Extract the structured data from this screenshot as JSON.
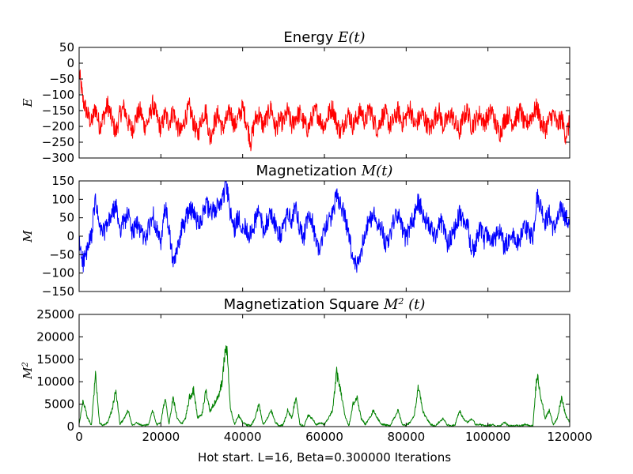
{
  "chart_data": [
    {
      "type": "line",
      "title_text": "Energy ",
      "title_math": "E(t)",
      "title_sup": "",
      "title_tail": "",
      "ylabel": "E",
      "ylabel_sup": "",
      "color": "#ff0000",
      "xlim": [
        0,
        120000
      ],
      "ylim": [
        -300,
        50
      ],
      "yticks": [
        50,
        0,
        -50,
        -100,
        -150,
        -200,
        -250,
        -300
      ],
      "ytick_labels": [
        "50",
        "0",
        "−50",
        "−100",
        "−150",
        "−200",
        "−250",
        "−300"
      ],
      "show_xticklabels": false,
      "series": [
        {
          "x": [
            0,
            1000,
            2000,
            3000,
            4000,
            5000,
            6000,
            7000,
            8000,
            9000,
            10000,
            11000,
            12000,
            13000,
            14000,
            15000,
            16000,
            17000,
            18000,
            19000,
            20000,
            21000,
            22000,
            23000,
            24000,
            25000,
            26000,
            27000,
            28000,
            29000,
            30000,
            31000,
            32000,
            33000,
            34000,
            35000,
            36000,
            37000,
            38000,
            39000,
            40000,
            41000,
            42000,
            43000,
            44000,
            45000,
            46000,
            47000,
            48000,
            49000,
            50000,
            51000,
            52000,
            53000,
            54000,
            55000,
            56000,
            57000,
            58000,
            59000,
            60000,
            61000,
            62000,
            63000,
            64000,
            65000,
            66000,
            67000,
            68000,
            69000,
            70000,
            71000,
            72000,
            73000,
            74000,
            75000,
            76000,
            77000,
            78000,
            79000,
            80000,
            81000,
            82000,
            83000,
            84000,
            85000,
            86000,
            87000,
            88000,
            89000,
            90000,
            91000,
            92000,
            93000,
            94000,
            95000,
            96000,
            97000,
            98000,
            99000,
            100000,
            101000,
            102000,
            103000,
            104000,
            105000,
            106000,
            107000,
            108000,
            109000,
            110000,
            111000,
            112000,
            113000,
            114000,
            115000,
            116000,
            117000,
            118000,
            119000,
            120000
          ],
          "y": [
            -30,
            -120,
            -160,
            -190,
            -140,
            -200,
            -170,
            -130,
            -180,
            -220,
            -160,
            -140,
            -190,
            -210,
            -170,
            -150,
            -200,
            -180,
            -130,
            -170,
            -210,
            -160,
            -190,
            -150,
            -200,
            -220,
            -170,
            -140,
            -190,
            -230,
            -170,
            -150,
            -240,
            -190,
            -160,
            -210,
            -180,
            -150,
            -200,
            -170,
            -140,
            -190,
            -250,
            -180,
            -160,
            -200,
            -170,
            -140,
            -210,
            -180,
            -190,
            -150,
            -200,
            -170,
            -160,
            -190,
            -210,
            -170,
            -150,
            -180,
            -200,
            -160,
            -140,
            -190,
            -220,
            -180,
            -160,
            -200,
            -170,
            -150,
            -190,
            -140,
            -180,
            -210,
            -170,
            -160,
            -200,
            -180,
            -150,
            -190,
            -170,
            -140,
            -200,
            -180,
            -160,
            -190,
            -210,
            -170,
            -150,
            -200,
            -180,
            -160,
            -190,
            -220,
            -170,
            -150,
            -200,
            -180,
            -160,
            -190,
            -170,
            -150,
            -200,
            -220,
            -180,
            -160,
            -190,
            -170,
            -150,
            -200,
            -180,
            -160,
            -140,
            -190,
            -210,
            -180,
            -160,
            -200,
            -170,
            -230,
            -190
          ]
        }
      ]
    },
    {
      "type": "line",
      "title_text": "Magnetization  ",
      "title_math": "M(t)",
      "title_sup": "",
      "title_tail": "",
      "ylabel": "M",
      "ylabel_sup": "",
      "color": "#0000ff",
      "xlim": [
        0,
        120000
      ],
      "ylim": [
        -150,
        150
      ],
      "yticks": [
        150,
        100,
        50,
        0,
        -50,
        -100,
        -150
      ],
      "ytick_labels": [
        "150",
        "100",
        "50",
        "0",
        "−50",
        "−100",
        "−150"
      ],
      "show_xticklabels": false,
      "series": [
        {
          "x": [
            0,
            1000,
            2000,
            3000,
            4000,
            5000,
            6000,
            7000,
            8000,
            9000,
            10000,
            11000,
            12000,
            13000,
            14000,
            15000,
            16000,
            17000,
            18000,
            19000,
            20000,
            21000,
            22000,
            23000,
            24000,
            25000,
            26000,
            27000,
            28000,
            29000,
            30000,
            31000,
            32000,
            33000,
            34000,
            35000,
            36000,
            37000,
            38000,
            39000,
            40000,
            41000,
            42000,
            43000,
            44000,
            45000,
            46000,
            47000,
            48000,
            49000,
            50000,
            51000,
            52000,
            53000,
            54000,
            55000,
            56000,
            57000,
            58000,
            59000,
            60000,
            61000,
            62000,
            63000,
            64000,
            65000,
            66000,
            67000,
            68000,
            69000,
            70000,
            71000,
            72000,
            73000,
            74000,
            75000,
            76000,
            77000,
            78000,
            79000,
            80000,
            81000,
            82000,
            83000,
            84000,
            85000,
            86000,
            87000,
            88000,
            89000,
            90000,
            91000,
            92000,
            93000,
            94000,
            95000,
            96000,
            97000,
            98000,
            99000,
            100000,
            101000,
            102000,
            103000,
            104000,
            105000,
            106000,
            107000,
            108000,
            109000,
            110000,
            111000,
            112000,
            113000,
            114000,
            115000,
            116000,
            117000,
            118000,
            119000,
            120000
          ],
          "y": [
            -20,
            -70,
            -40,
            0,
            100,
            20,
            10,
            30,
            60,
            80,
            20,
            40,
            60,
            10,
            30,
            20,
            -10,
            20,
            60,
            20,
            -30,
            80,
            20,
            -80,
            -40,
            20,
            40,
            80,
            60,
            40,
            50,
            90,
            60,
            70,
            80,
            100,
            140,
            60,
            20,
            50,
            30,
            20,
            0,
            40,
            70,
            20,
            40,
            60,
            30,
            0,
            20,
            60,
            40,
            80,
            20,
            0,
            50,
            40,
            -20,
            -30,
            20,
            40,
            60,
            110,
            90,
            50,
            0,
            -70,
            -80,
            -40,
            20,
            40,
            60,
            40,
            20,
            -20,
            0,
            40,
            60,
            20,
            -10,
            30,
            50,
            100,
            60,
            40,
            20,
            0,
            30,
            40,
            -20,
            0,
            20,
            60,
            40,
            30,
            -40,
            -20,
            20,
            -10,
            10,
            -20,
            0,
            10,
            -30,
            -10,
            0,
            -20,
            0,
            20,
            10,
            0,
            110,
            80,
            40,
            60,
            20,
            40,
            80,
            50,
            30
          ]
        }
      ]
    },
    {
      "type": "line",
      "title_text": "Magnetization Square  ",
      "title_math": "M",
      "title_sup": "2",
      "title_tail": " (t)",
      "ylabel": "M",
      "ylabel_sup": "2",
      "color": "#008000",
      "xlim": [
        0,
        120000
      ],
      "ylim": [
        0,
        25000
      ],
      "yticks": [
        25000,
        20000,
        15000,
        10000,
        5000,
        0
      ],
      "ytick_labels": [
        "25000",
        "20000",
        "15000",
        "10000",
        "5000",
        "0"
      ],
      "xticks": [
        0,
        20000,
        40000,
        60000,
        80000,
        100000,
        120000
      ],
      "xtick_labels": [
        "0",
        "20000",
        "40000",
        "60000",
        "80000",
        "100000",
        "120000"
      ],
      "show_xticklabels": true,
      "series": [
        {
          "x": [
            0,
            1000,
            2000,
            3000,
            4000,
            5000,
            6000,
            7000,
            8000,
            9000,
            10000,
            11000,
            12000,
            13000,
            14000,
            15000,
            16000,
            17000,
            18000,
            19000,
            20000,
            21000,
            22000,
            23000,
            24000,
            25000,
            26000,
            27000,
            28000,
            29000,
            30000,
            31000,
            32000,
            33000,
            34000,
            35000,
            36000,
            37000,
            38000,
            39000,
            40000,
            41000,
            42000,
            43000,
            44000,
            45000,
            46000,
            47000,
            48000,
            49000,
            50000,
            51000,
            52000,
            53000,
            54000,
            55000,
            56000,
            57000,
            58000,
            59000,
            60000,
            61000,
            62000,
            63000,
            64000,
            65000,
            66000,
            67000,
            68000,
            69000,
            70000,
            71000,
            72000,
            73000,
            74000,
            75000,
            76000,
            77000,
            78000,
            79000,
            80000,
            81000,
            82000,
            83000,
            84000,
            85000,
            86000,
            87000,
            88000,
            89000,
            90000,
            91000,
            92000,
            93000,
            94000,
            95000,
            96000,
            97000,
            98000,
            99000,
            100000,
            101000,
            102000,
            103000,
            104000,
            105000,
            106000,
            107000,
            108000,
            109000,
            110000,
            111000,
            112000,
            113000,
            114000,
            115000,
            116000,
            117000,
            118000,
            119000,
            120000
          ],
          "y": [
            500,
            6000,
            2000,
            300,
            11500,
            800,
            200,
            1000,
            3600,
            8000,
            500,
            1800,
            3600,
            200,
            1000,
            400,
            200,
            500,
            3600,
            400,
            900,
            6500,
            600,
            6500,
            1800,
            500,
            1800,
            6500,
            8000,
            2000,
            2500,
            8000,
            3600,
            5000,
            6500,
            10000,
            19000,
            4000,
            500,
            2500,
            1000,
            400,
            100,
            1800,
            5000,
            500,
            1800,
            3600,
            1000,
            100,
            500,
            3600,
            1800,
            6500,
            500,
            100,
            2500,
            1800,
            400,
            900,
            500,
            1800,
            3600,
            12000,
            8000,
            2500,
            100,
            5000,
            6500,
            1800,
            500,
            1800,
            3600,
            1800,
            500,
            400,
            100,
            1800,
            3600,
            500,
            200,
            1000,
            2500,
            9000,
            3600,
            1800,
            500,
            100,
            1000,
            1800,
            400,
            100,
            500,
            3600,
            1800,
            1000,
            1800,
            500,
            500,
            200,
            200,
            400,
            100,
            200,
            1000,
            200,
            100,
            400,
            100,
            500,
            200,
            100,
            12000,
            6500,
            1800,
            3600,
            500,
            1800,
            6500,
            2500,
            1000
          ]
        }
      ]
    }
  ],
  "xlabel": "Hot start. L=16, Beta=0.300000 Iterations"
}
